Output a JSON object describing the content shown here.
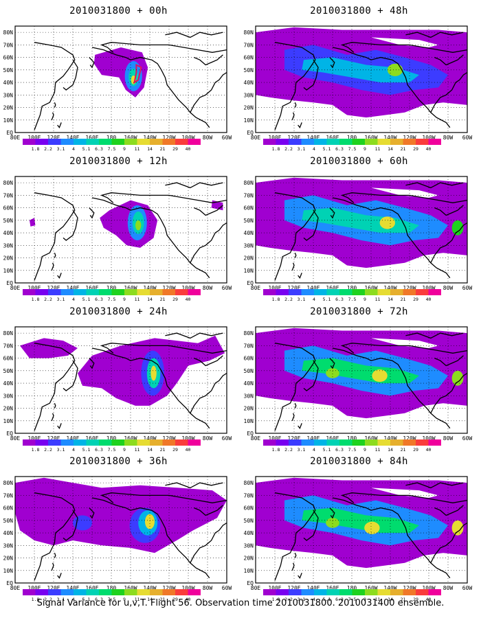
{
  "caption": "Signal Variance for u,v,T. Flight 56. Observation time 2010031800. 2010031400 ensemble.",
  "map": {
    "lat_labels": [
      "80N",
      "70N",
      "60N",
      "50N",
      "40N",
      "30N",
      "20N",
      "10N",
      "EQ"
    ],
    "lon_labels": [
      "80E",
      "100E",
      "120E",
      "140E",
      "160E",
      "180",
      "160W",
      "140W",
      "120W",
      "100W",
      "80W",
      "60W"
    ]
  },
  "colorbar": {
    "labels": [
      "1.8",
      "2.2",
      "3.1",
      "4",
      "5.1",
      "6.3",
      "7.5",
      "9",
      "11",
      "14",
      "21",
      "29",
      "40"
    ],
    "colors": [
      "#a000d0",
      "#7800f0",
      "#3c3cff",
      "#1e8cff",
      "#00b4e6",
      "#00d2b4",
      "#00dc6e",
      "#1ed21e",
      "#8cdc1e",
      "#e6dc32",
      "#e6af2d",
      "#f07828",
      "#fa3c3c",
      "#f0009c"
    ]
  },
  "panels": [
    {
      "title": "2010031800 + 00h",
      "col": 0,
      "row": 0,
      "level": 0
    },
    {
      "title": "2010031800 + 12h",
      "col": 0,
      "row": 1,
      "level": 1
    },
    {
      "title": "2010031800 + 24h",
      "col": 0,
      "row": 2,
      "level": 2
    },
    {
      "title": "2010031800 + 36h",
      "col": 0,
      "row": 3,
      "level": 3
    },
    {
      "title": "2010031800 + 48h",
      "col": 1,
      "row": 0,
      "level": 4
    },
    {
      "title": "2010031800 + 60h",
      "col": 1,
      "row": 1,
      "level": 5
    },
    {
      "title": "2010031800 + 72h",
      "col": 1,
      "row": 2,
      "level": 6
    },
    {
      "title": "2010031800 + 84h",
      "col": 1,
      "row": 3,
      "level": 7
    }
  ]
}
